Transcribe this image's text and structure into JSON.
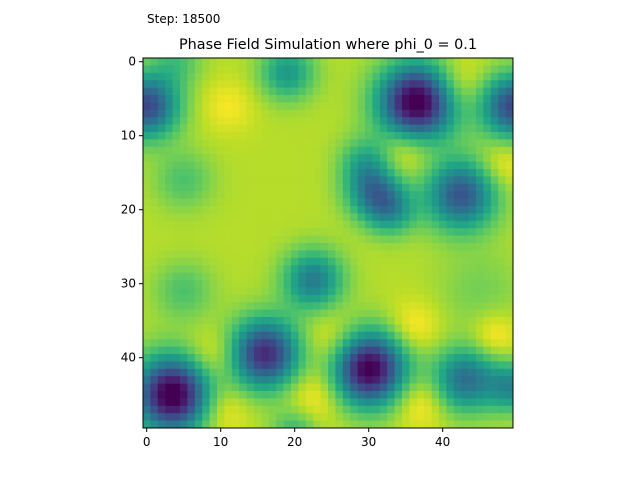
{
  "step_label": "Step: 18500",
  "chart_data": {
    "type": "heatmap",
    "title": "Phase Field Simulation where phi_0 = 0.1",
    "xlabel": "",
    "ylabel": "",
    "grid_size": [
      50,
      50
    ],
    "x_range": [
      0,
      49
    ],
    "y_range": [
      0,
      49
    ],
    "y_axis_inverted": true,
    "x_ticks": [
      0,
      10,
      20,
      30,
      40
    ],
    "y_ticks": [
      0,
      10,
      20,
      30,
      40
    ],
    "colormap": "viridis",
    "value_range": [
      -1,
      1
    ],
    "background_level": 0.78,
    "blobs": [
      {
        "x": 36.5,
        "y": 5.5,
        "depth": 1.9,
        "radius": 3.6
      },
      {
        "x": 3.5,
        "y": 45,
        "depth": 1.9,
        "radius": 3.6
      },
      {
        "x": 30,
        "y": 41.5,
        "depth": 1.85,
        "radius": 3.5
      },
      {
        "x": 16,
        "y": 39.5,
        "depth": 1.55,
        "radius": 3.3
      },
      {
        "x": 42.5,
        "y": 18,
        "depth": 1.25,
        "radius": 3.3
      },
      {
        "x": 0,
        "y": 6,
        "depth": 1.35,
        "radius": 3.0
      },
      {
        "x": 49.5,
        "y": 6,
        "depth": 1.35,
        "radius": 3.0
      },
      {
        "x": 43,
        "y": 43,
        "depth": 1.05,
        "radius": 3.0
      },
      {
        "x": 22.5,
        "y": 29.5,
        "depth": 0.95,
        "radius": 2.8
      },
      {
        "x": 30.5,
        "y": 17.5,
        "depth": 0.85,
        "radius": 2.6
      },
      {
        "x": 33,
        "y": 20,
        "depth": 0.7,
        "radius": 2.4
      },
      {
        "x": 29.5,
        "y": 13.5,
        "depth": 0.5,
        "radius": 2.4
      },
      {
        "x": 19,
        "y": 1.5,
        "depth": 0.7,
        "radius": 2.6
      },
      {
        "x": 49.5,
        "y": 44,
        "depth": 0.8,
        "radius": 2.3
      },
      {
        "x": 5,
        "y": 16,
        "depth": 0.35,
        "radius": 2.8
      },
      {
        "x": 5,
        "y": 31,
        "depth": 0.35,
        "radius": 2.8
      },
      {
        "x": 4,
        "y": 0,
        "depth": 0.35,
        "radius": 2.4
      },
      {
        "x": 20,
        "y": 50,
        "depth": 0.45,
        "radius": 2.2
      },
      {
        "x": 45,
        "y": 31,
        "depth": 0.2,
        "radius": 4.0
      }
    ],
    "bright_spots": [
      {
        "x": 42,
        "y": 3,
        "height": 0.3,
        "radius": 2.6
      },
      {
        "x": 35,
        "y": 12,
        "height": 0.3,
        "radius": 2.5
      },
      {
        "x": 25,
        "y": 38,
        "height": 0.3,
        "radius": 2.8
      },
      {
        "x": 9,
        "y": 40,
        "height": 0.3,
        "radius": 2.5
      },
      {
        "x": 36,
        "y": 36,
        "height": 0.28,
        "radius": 2.5
      },
      {
        "x": 23,
        "y": 45,
        "height": 0.3,
        "radius": 2.8
      },
      {
        "x": 37,
        "y": 46,
        "height": 0.3,
        "radius": 2.5
      },
      {
        "x": 10,
        "y": 47,
        "height": 0.3,
        "radius": 2.5
      },
      {
        "x": 48,
        "y": 14,
        "height": 0.25,
        "radius": 2.3
      },
      {
        "x": 11,
        "y": 6,
        "height": 0.2,
        "radius": 2.5
      },
      {
        "x": 47,
        "y": 37,
        "height": 0.28,
        "radius": 2.2
      }
    ]
  }
}
